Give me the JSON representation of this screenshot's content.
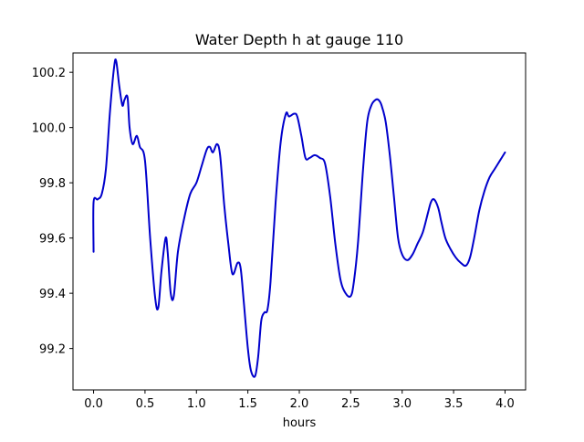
{
  "chart_data": {
    "type": "line",
    "title": "Water Depth h at gauge 110",
    "xlabel": "hours",
    "ylabel": "",
    "xlim": [
      -0.2,
      4.2
    ],
    "ylim": [
      99.05,
      100.27
    ],
    "xticks": [
      "0.0",
      "0.5",
      "1.0",
      "1.5",
      "2.0",
      "2.5",
      "3.0",
      "3.5",
      "4.0"
    ],
    "yticks": [
      "99.2",
      "99.4",
      "99.6",
      "99.8",
      "100.0",
      "100.2"
    ],
    "grid": false,
    "legend": "none",
    "series": [
      {
        "color": "#0000cc",
        "x": [
          0.0,
          0.0,
          0.04,
          0.08,
          0.12,
          0.16,
          0.2,
          0.22,
          0.25,
          0.28,
          0.3,
          0.33,
          0.35,
          0.38,
          0.42,
          0.45,
          0.5,
          0.55,
          0.6,
          0.63,
          0.66,
          0.7,
          0.72,
          0.75,
          0.78,
          0.82,
          0.88,
          0.94,
          1.0,
          1.05,
          1.1,
          1.13,
          1.16,
          1.2,
          1.23,
          1.27,
          1.31,
          1.35,
          1.4,
          1.43,
          1.46,
          1.5,
          1.53,
          1.57,
          1.6,
          1.63,
          1.66,
          1.69,
          1.72,
          1.77,
          1.82,
          1.87,
          1.9,
          1.95,
          1.98,
          2.02,
          2.06,
          2.1,
          2.15,
          2.2,
          2.25,
          2.3,
          2.35,
          2.4,
          2.45,
          2.5,
          2.53,
          2.57,
          2.62,
          2.66,
          2.7,
          2.74,
          2.77,
          2.8,
          2.84,
          2.88,
          2.92,
          2.96,
          3.0,
          3.05,
          3.1,
          3.15,
          3.2,
          3.25,
          3.28,
          3.31,
          3.35,
          3.38,
          3.42,
          3.47,
          3.52,
          3.57,
          3.62,
          3.66,
          3.7,
          3.75,
          3.8,
          3.85,
          3.9,
          3.95,
          4.0
        ],
        "y": [
          99.55,
          99.73,
          99.74,
          99.76,
          99.85,
          100.06,
          100.22,
          100.24,
          100.15,
          100.08,
          100.1,
          100.11,
          100.0,
          99.94,
          99.97,
          99.93,
          99.88,
          99.6,
          99.38,
          99.35,
          99.48,
          99.6,
          99.55,
          99.4,
          99.39,
          99.55,
          99.67,
          99.76,
          99.8,
          99.86,
          99.92,
          99.93,
          99.91,
          99.94,
          99.9,
          99.72,
          99.58,
          99.47,
          99.51,
          99.49,
          99.37,
          99.2,
          99.12,
          99.1,
          99.17,
          99.3,
          99.33,
          99.34,
          99.44,
          99.73,
          99.95,
          100.05,
          100.04,
          100.05,
          100.04,
          99.97,
          99.89,
          99.89,
          99.9,
          99.89,
          99.87,
          99.75,
          99.58,
          99.45,
          99.4,
          99.39,
          99.44,
          99.58,
          99.85,
          100.02,
          100.08,
          100.1,
          100.1,
          100.08,
          100.02,
          99.9,
          99.75,
          99.6,
          99.54,
          99.52,
          99.54,
          99.58,
          99.62,
          99.69,
          99.73,
          99.74,
          99.71,
          99.66,
          99.6,
          99.56,
          99.53,
          99.51,
          99.5,
          99.53,
          99.6,
          99.7,
          99.77,
          99.82,
          99.85,
          99.88,
          99.91
        ]
      }
    ]
  }
}
